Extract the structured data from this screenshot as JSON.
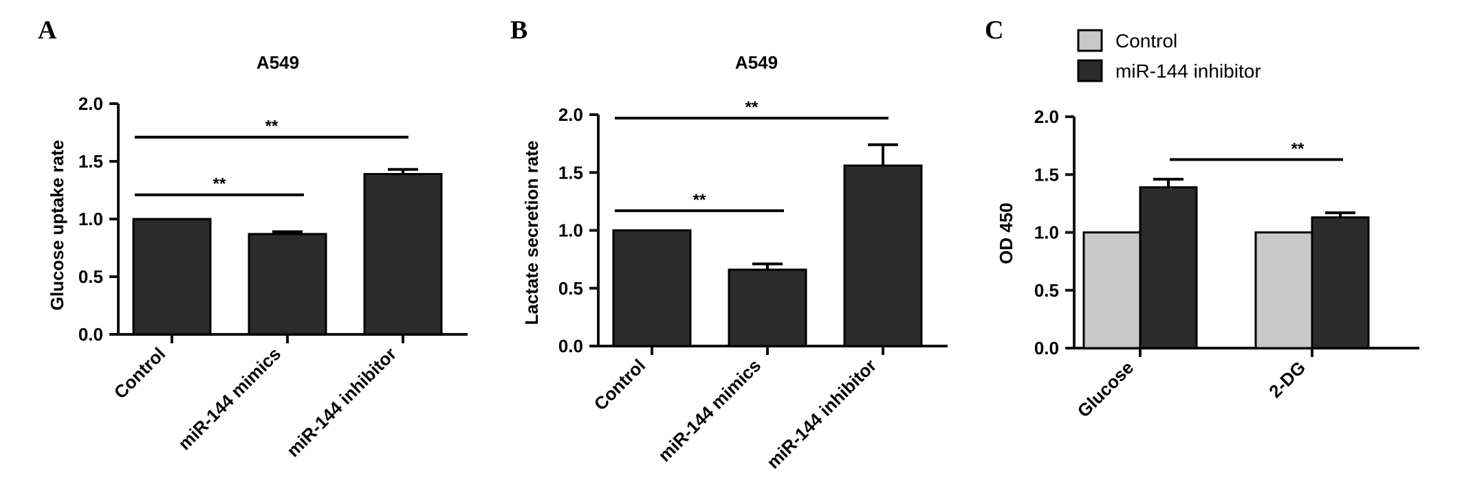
{
  "panels": [
    {
      "letter": "A"
    },
    {
      "letter": "B"
    },
    {
      "letter": "C"
    }
  ],
  "chart_data": [
    {
      "type": "bar",
      "title": "A549",
      "xlabel": "",
      "ylabel": "Glucose uptake rate",
      "ylim": [
        0,
        2.0
      ],
      "yticks": [
        "0.0",
        "0.5",
        "1.0",
        "1.5",
        "2.0"
      ],
      "categories": [
        "Control",
        "miR-144 mimics",
        "miR-144 inhibitor"
      ],
      "values": [
        1.0,
        0.87,
        1.39
      ],
      "errors": [
        0.0,
        0.02,
        0.04
      ],
      "bar_color": "#2b2b2b",
      "significance": [
        {
          "from": 0,
          "to": 1,
          "y": 1.21,
          "label": "**"
        },
        {
          "from": 0,
          "to": 2,
          "y": 1.71,
          "label": "**"
        }
      ]
    },
    {
      "type": "bar",
      "title": "A549",
      "xlabel": "",
      "ylabel": "Lactate secretion rate",
      "ylim": [
        0,
        2.0
      ],
      "yticks": [
        "0.0",
        "0.5",
        "1.0",
        "1.5",
        "2.0"
      ],
      "categories": [
        "Control",
        "miR-144 mimics",
        "miR-144 inhibitor"
      ],
      "values": [
        1.0,
        0.66,
        1.56
      ],
      "errors": [
        0.0,
        0.05,
        0.18
      ],
      "bar_color": "#2b2b2b",
      "significance": [
        {
          "from": 0,
          "to": 1,
          "y": 1.17,
          "label": "**"
        },
        {
          "from": 0,
          "to": 2,
          "y": 1.97,
          "label": "**"
        }
      ]
    },
    {
      "type": "bar",
      "title": "",
      "xlabel": "",
      "ylabel": "OD 450",
      "ylim": [
        0,
        2.0
      ],
      "yticks": [
        "0.0",
        "0.5",
        "1.0",
        "1.5",
        "2.0"
      ],
      "categories": [
        "Glucose",
        "2-DG"
      ],
      "legend_position": "top-left",
      "series": [
        {
          "name": "Control",
          "color": "#c8c8c8",
          "values": [
            1.0,
            1.0
          ],
          "errors": [
            0.0,
            0.0
          ]
        },
        {
          "name": "miR-144 inhibitor",
          "color": "#2b2b2b",
          "values": [
            1.39,
            1.13
          ],
          "errors": [
            0.07,
            0.04
          ]
        }
      ],
      "significance": [
        {
          "label": "**",
          "y": 1.63
        }
      ]
    }
  ]
}
